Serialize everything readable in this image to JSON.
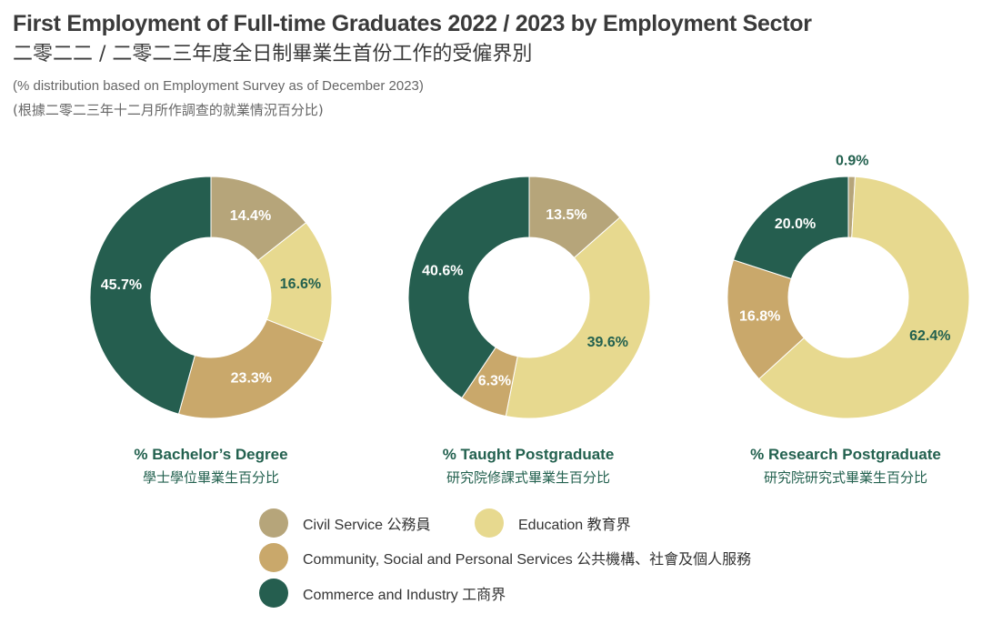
{
  "title_en": "First Employment of Full-time Graduates 2022 / 2023 by Employment Sector",
  "title_zh": "二零二二 / 二零二三年度全日制畢業生首份工作的受僱界別",
  "subtitle_en": "(% distribution based on Employment Survey as of December 2023)",
  "subtitle_zh": "(根據二零二三年十二月所作調查的就業情況百分比)",
  "colors": {
    "civil": "#b6a57a",
    "education": "#e7d98f",
    "community": "#c9a86b",
    "commerce": "#255e4f"
  },
  "legend": [
    {
      "key": "civil",
      "label": "Civil Service 公務員"
    },
    {
      "key": "education",
      "label": "Education 教育界"
    },
    {
      "key": "community",
      "label": "Community, Social and Personal Services 公共機構、社會及個人服務"
    },
    {
      "key": "commerce",
      "label": "Commerce and Industry 工商界"
    }
  ],
  "chart_data": [
    {
      "type": "pie",
      "title": "% Bachelor’s Degree",
      "title_zh": "學士學位畢業生百分比",
      "series": [
        {
          "name": "Civil Service",
          "key": "civil",
          "value": 14.4,
          "label": "14.4%"
        },
        {
          "name": "Education",
          "key": "education",
          "value": 16.6,
          "label": "16.6%"
        },
        {
          "name": "Community, Social and Personal Services",
          "key": "community",
          "value": 23.3,
          "label": "23.3%"
        },
        {
          "name": "Commerce and Industry",
          "key": "commerce",
          "value": 45.7,
          "label": "45.7%"
        }
      ]
    },
    {
      "type": "pie",
      "title": "% Taught Postgraduate",
      "title_zh": "研究院修課式畢業生百分比",
      "series": [
        {
          "name": "Civil Service",
          "key": "civil",
          "value": 13.5,
          "label": "13.5%"
        },
        {
          "name": "Education",
          "key": "education",
          "value": 39.6,
          "label": "39.6%"
        },
        {
          "name": "Community, Social and Personal Services",
          "key": "community",
          "value": 6.3,
          "label": "6.3%"
        },
        {
          "name": "Commerce and Industry",
          "key": "commerce",
          "value": 40.6,
          "label": "40.6%"
        }
      ]
    },
    {
      "type": "pie",
      "title": "% Research Postgraduate",
      "title_zh": "研究院研究式畢業生百分比",
      "series": [
        {
          "name": "Civil Service",
          "key": "civil",
          "value": 0.9,
          "label": "0.9%"
        },
        {
          "name": "Education",
          "key": "education",
          "value": 62.4,
          "label": "62.4%"
        },
        {
          "name": "Community, Social and Personal Services",
          "key": "community",
          "value": 16.8,
          "label": "16.8%"
        },
        {
          "name": "Commerce and Industry",
          "key": "commerce",
          "value": 20.0,
          "label": "20.0%"
        }
      ]
    }
  ]
}
